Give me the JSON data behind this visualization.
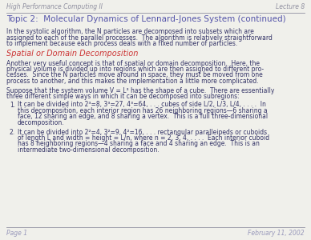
{
  "bg_color": "#f0f0eb",
  "header_left": "High Performance Computing II",
  "header_right": "Lecture 8",
  "header_color": "#9090a0",
  "title": "Topic 2:  Molecular Dynamics of Lennard-Jones System (continued)",
  "title_color": "#5555aa",
  "body_color": "#333366",
  "section_color": "#cc3333",
  "section_title": "Spatial or Domain Decomposition",
  "footer_left": "Page 1",
  "footer_right": "February 11, 2002",
  "footer_color": "#9999bb",
  "para1_lines": [
    "In the systolic algorithm, the N particles are decomposed into subsets which are",
    "assigned to each of the parallel processes.  The algorithm is relatively straightforward",
    "to implement because each process deals with a fixed number of particles."
  ],
  "para2_lines": [
    "Another very useful concept is that of spatial or domain decomposition.  Here, the",
    "physical volume is divided up into regions which are then assigned to different pro-",
    "cesses.  Since the N particles move around in space, they must be moved from one",
    "process to another, and this makes the implementation a little more complicated."
  ],
  "para3_lines": [
    "Suppose that the system volume V = L³ has the shape of a cube.  There are essentially",
    "three different simple ways in which it can be decomposed into subregions:"
  ],
  "item1_lines": [
    "It can be divided into 2³=8, 3³=27, 4³=64, . . . cubes of side L/2, L/3, L/4, . . . .  In",
    "this decomposition, each interior region has 26 neighboring regions—6 sharing a",
    "face, 12 sharing an edge, and 8 sharing a vertex.  This is a full three-dimensional",
    "decomposition."
  ],
  "item2_lines": [
    "It can be divided into 2²=4, 3²=9, 4²=16, . . . rectangular paralleipeds or cuboids",
    "of length L and width = height = L/n, where n = 2, 3, 4, . . . .  Each interior cuboid",
    "has 8 neighboring regions—4 sharing a face and 4 sharing an edge.  This is an",
    "intermediate two-dimensional decomposition."
  ]
}
